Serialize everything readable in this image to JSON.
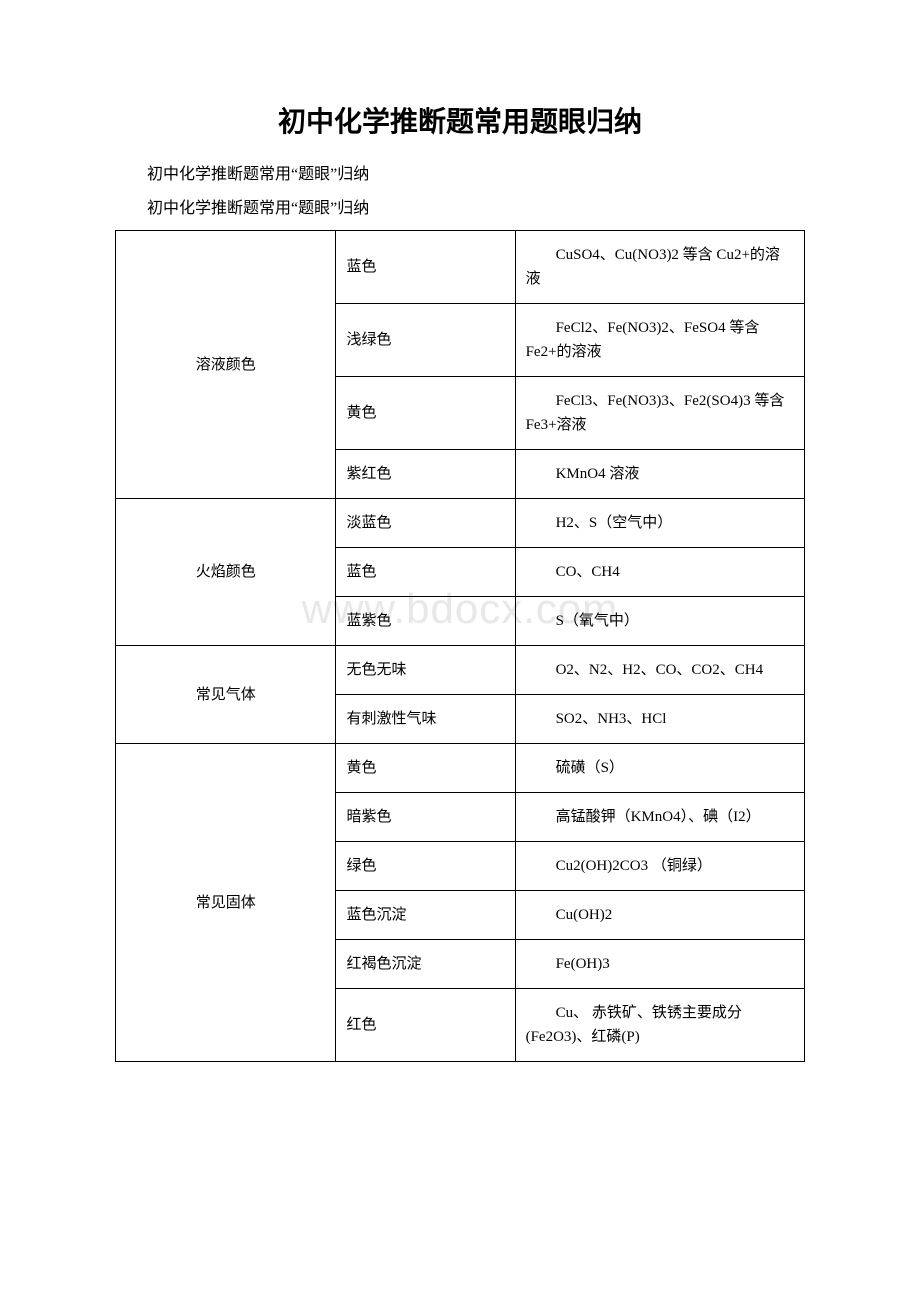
{
  "title": "初中化学推断题常用题眼归纳",
  "subtitle1": "初中化学推断题常用“题眼”归纳",
  "subtitle2": "初中化学推断题常用“题眼”归纳",
  "watermark": "www.bdocx.com",
  "table": {
    "categories": [
      {
        "name": "溶液颜色",
        "rows": [
          {
            "property": "蓝色",
            "example": "CuSO4、Cu(NO3)2 等含 Cu2+的溶液"
          },
          {
            "property": "浅绿色",
            "example": "FeCl2、Fe(NO3)2、FeSO4 等含 Fe2+的溶液"
          },
          {
            "property": "黄色",
            "example": "FeCl3、Fe(NO3)3、Fe2(SO4)3 等含 Fe3+溶液"
          },
          {
            "property": "紫红色",
            "example": "KMnO4 溶液"
          }
        ]
      },
      {
        "name": "火焰颜色",
        "rows": [
          {
            "property": "淡蓝色",
            "example": "H2、S（空气中）"
          },
          {
            "property": "蓝色",
            "example": "CO、CH4"
          },
          {
            "property": "蓝紫色",
            "example": "S（氧气中）"
          }
        ]
      },
      {
        "name": "常见气体",
        "rows": [
          {
            "property": "无色无味",
            "example": "O2、N2、H2、CO、CO2、CH4"
          },
          {
            "property": "有刺激性气味",
            "example": "SO2、NH3、HCl"
          }
        ]
      },
      {
        "name": "常见固体",
        "rows": [
          {
            "property": "黄色",
            "example": "硫磺（S）"
          },
          {
            "property": "暗紫色",
            "example": "高锰酸钾（KMnO4）、碘（I2）"
          },
          {
            "property": "绿色",
            "example": "Cu2(OH)2CO3 （铜绿）"
          },
          {
            "property": "蓝色沉淀",
            "example": "Cu(OH)2"
          },
          {
            "property": "红褐色沉淀",
            "example": "Fe(OH)3"
          },
          {
            "property": "红色",
            "example": "Cu、 赤铁矿、铁锈主要成分(Fe2O3)、红磷(P)"
          }
        ]
      }
    ]
  }
}
